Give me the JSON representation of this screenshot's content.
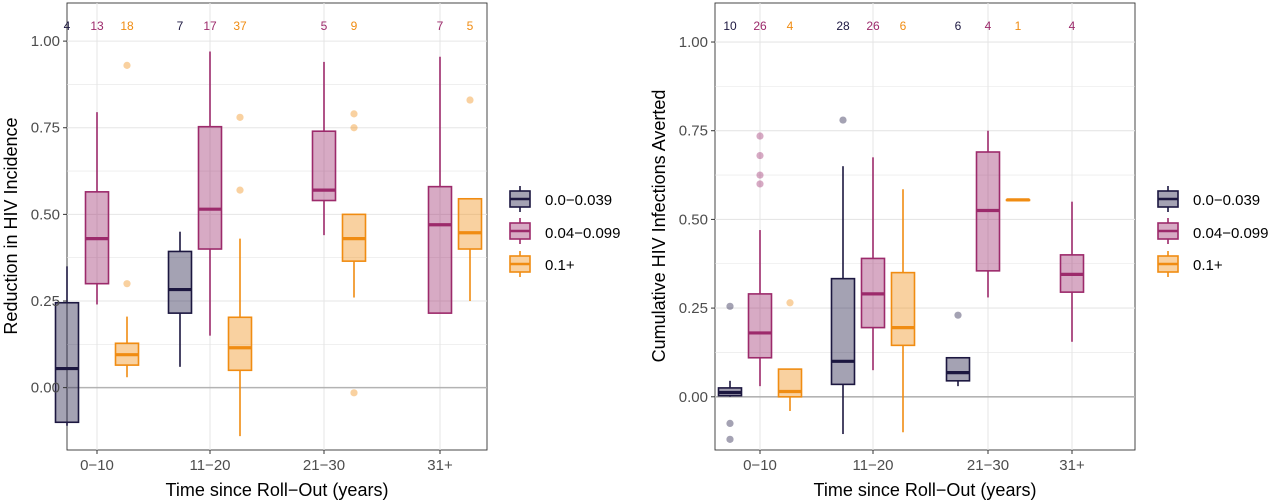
{
  "colors": {
    "0.0-0.039": "#1c1740",
    "0.04-0.099": "#9c2a6b",
    "0.1+": "#f08c12",
    "panel_border": "#333333",
    "grid": "#e6e6e6",
    "zero_line": "#b3b3b3"
  },
  "chart_data": [
    {
      "type": "boxplot",
      "ylabel": "Reduction in HIV Incidence",
      "xlabel": "Time since Roll−Out (years)",
      "categories": [
        "0−10",
        "11−20",
        "21−30",
        "31+"
      ],
      "ylim": [
        -0.18,
        1.11
      ],
      "y_ticks": [
        0.0,
        0.25,
        0.5,
        0.75,
        1.0
      ],
      "y_tick_labels": [
        "0.00",
        "0.25",
        "0.50",
        "0.75",
        "1.00"
      ],
      "grid": true,
      "legend": {
        "position": "right",
        "entries": [
          "0.0−0.039",
          "0.04−0.099",
          "0.1+"
        ]
      },
      "series": [
        {
          "name": "0.0−0.039",
          "key": "0.0-0.039",
          "boxes": [
            {
              "category": "0−10",
              "count": "4",
              "whisker_low": -0.11,
              "q1": -0.1,
              "median": 0.055,
              "q3": 0.245,
              "whisker_high": 0.35,
              "outliers": []
            },
            {
              "category": "11−20",
              "count": "7",
              "whisker_low": 0.06,
              "q1": 0.215,
              "median": 0.283,
              "q3": 0.393,
              "whisker_high": 0.45,
              "outliers": []
            }
          ]
        },
        {
          "name": "0.04−0.099",
          "key": "0.04-0.099",
          "boxes": [
            {
              "category": "0−10",
              "count": "13",
              "whisker_low": 0.24,
              "q1": 0.3,
              "median": 0.43,
              "q3": 0.565,
              "whisker_high": 0.795,
              "outliers": []
            },
            {
              "category": "11−20",
              "count": "17",
              "whisker_low": 0.15,
              "q1": 0.4,
              "median": 0.515,
              "q3": 0.753,
              "whisker_high": 0.97,
              "outliers": []
            },
            {
              "category": "21−30",
              "count": "5",
              "whisker_low": 0.44,
              "q1": 0.54,
              "median": 0.57,
              "q3": 0.74,
              "whisker_high": 0.94,
              "outliers": []
            },
            {
              "category": "31+",
              "count": "7",
              "whisker_low": 0.215,
              "q1": 0.215,
              "median": 0.47,
              "q3": 0.58,
              "whisker_high": 0.955,
              "outliers": []
            }
          ]
        },
        {
          "name": "0.1+",
          "key": "0.1+",
          "boxes": [
            {
              "category": "0−10",
              "count": "18",
              "whisker_low": 0.03,
              "q1": 0.065,
              "median": 0.095,
              "q3": 0.128,
              "whisker_high": 0.205,
              "outliers": [
                0.3,
                0.93
              ]
            },
            {
              "category": "11−20",
              "count": "37",
              "whisker_low": -0.14,
              "q1": 0.05,
              "median": 0.115,
              "q3": 0.203,
              "whisker_high": 0.43,
              "outliers": [
                0.57,
                0.78
              ]
            },
            {
              "category": "21−30",
              "count": "9",
              "whisker_low": 0.26,
              "q1": 0.365,
              "median": 0.43,
              "q3": 0.5,
              "whisker_high": 0.5,
              "outliers": [
                -0.015,
                0.75,
                0.79
              ]
            },
            {
              "category": "31+",
              "count": "5",
              "whisker_low": 0.25,
              "q1": 0.4,
              "median": 0.447,
              "q3": 0.545,
              "whisker_high": 0.545,
              "outliers": [
                0.83
              ]
            }
          ]
        }
      ]
    },
    {
      "type": "boxplot",
      "ylabel": "Cumulative HIV Infections Averted",
      "xlabel": "Time since Roll−Out (years)",
      "categories": [
        "0−10",
        "11−20",
        "21−30",
        "31+"
      ],
      "ylim": [
        -0.15,
        1.11
      ],
      "y_ticks": [
        0.0,
        0.25,
        0.5,
        0.75,
        1.0
      ],
      "y_tick_labels": [
        "0.00",
        "0.25",
        "0.50",
        "0.75",
        "1.00"
      ],
      "grid": true,
      "legend": {
        "position": "right",
        "entries": [
          "0.0−0.039",
          "0.04−0.099",
          "0.1+"
        ]
      },
      "series": [
        {
          "name": "0.0−0.039",
          "key": "0.0-0.039",
          "boxes": [
            {
              "category": "0−10",
              "count": "10",
              "whisker_low": 0.0,
              "q1": 0.003,
              "median": 0.012,
              "q3": 0.025,
              "whisker_high": 0.045,
              "outliers": [
                -0.075,
                -0.12,
                0.255
              ]
            },
            {
              "category": "11−20",
              "count": "28",
              "whisker_low": -0.105,
              "q1": 0.035,
              "median": 0.1,
              "q3": 0.333,
              "whisker_high": 0.65,
              "outliers": [
                0.78
              ]
            },
            {
              "category": "21−30",
              "count": "6",
              "whisker_low": 0.03,
              "q1": 0.045,
              "median": 0.068,
              "q3": 0.11,
              "whisker_high": 0.11,
              "outliers": [
                0.23
              ]
            }
          ]
        },
        {
          "name": "0.04−0.099",
          "key": "0.04-0.099",
          "boxes": [
            {
              "category": "0−10",
              "count": "26",
              "whisker_low": 0.03,
              "q1": 0.11,
              "median": 0.18,
              "q3": 0.29,
              "whisker_high": 0.47,
              "outliers": [
                0.6,
                0.625,
                0.68,
                0.735
              ]
            },
            {
              "category": "11−20",
              "count": "26",
              "whisker_low": 0.075,
              "q1": 0.195,
              "median": 0.29,
              "q3": 0.39,
              "whisker_high": 0.675,
              "outliers": []
            },
            {
              "category": "21−30",
              "count": "4",
              "whisker_low": 0.28,
              "q1": 0.355,
              "median": 0.525,
              "q3": 0.69,
              "whisker_high": 0.75,
              "outliers": []
            },
            {
              "category": "31+",
              "count": "4",
              "whisker_low": 0.155,
              "q1": 0.295,
              "median": 0.345,
              "q3": 0.4,
              "whisker_high": 0.55,
              "outliers": []
            }
          ]
        },
        {
          "name": "0.1+",
          "key": "0.1+",
          "boxes": [
            {
              "category": "0−10",
              "count": "4",
              "whisker_low": -0.04,
              "q1": 0.0,
              "median": 0.015,
              "q3": 0.078,
              "whisker_high": 0.078,
              "outliers": [
                0.265
              ]
            },
            {
              "category": "11−20",
              "count": "6",
              "whisker_low": -0.1,
              "q1": 0.145,
              "median": 0.195,
              "q3": 0.35,
              "whisker_high": 0.585,
              "outliers": []
            },
            {
              "category": "21−30",
              "count": "1",
              "whisker_low": 0.555,
              "q1": 0.555,
              "median": 0.555,
              "q3": 0.555,
              "whisker_high": 0.555,
              "outliers": []
            }
          ]
        }
      ]
    }
  ]
}
